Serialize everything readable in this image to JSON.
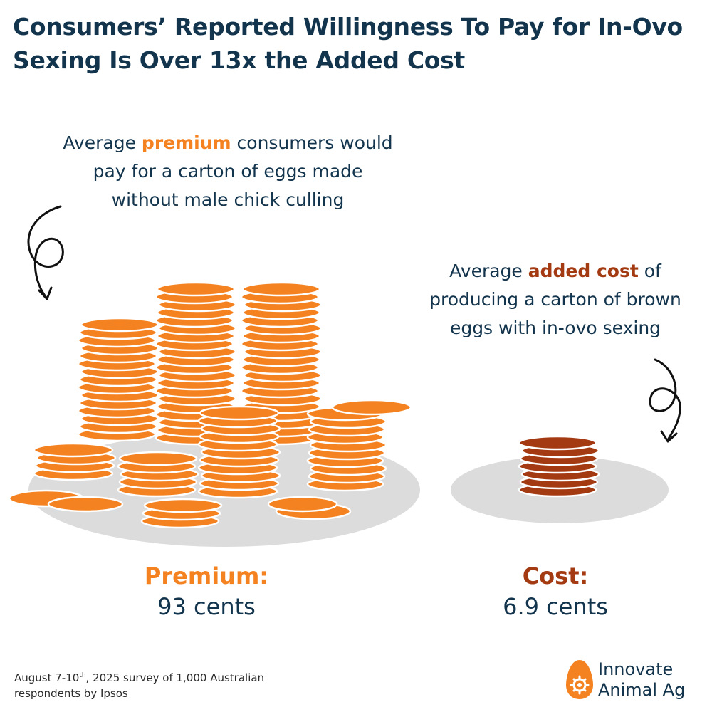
{
  "title": "Consumers’ Reported Willingness To Pay for In-Ovo Sexing Is Over 13x the Added Cost",
  "premium_caption": {
    "before": "Average ",
    "highlight": "premium",
    "after": " consumers would pay for a carton of eggs made without male chick culling"
  },
  "cost_caption": {
    "before": "Average ",
    "highlight": "added cost",
    "after": " of producing a carton of brown eggs with in-ovo sexing"
  },
  "premium": {
    "label": "Premium:",
    "amount": "93 cents"
  },
  "cost": {
    "label": "Cost:",
    "amount": "6.9 cents"
  },
  "footnote": {
    "before": "August 7-10",
    "superscript": "th",
    "after": ", 2025 survey of 1,000 Australian respondents by Ipsos"
  },
  "brand": {
    "line1": "Innovate",
    "line2": "Animal Ag"
  },
  "colors": {
    "title": "#12344d",
    "premium": "#f58220",
    "cost": "#a43a12",
    "plate": "#dcdcdc"
  },
  "chart_data": {
    "type": "bar",
    "categories": [
      "Premium",
      "Cost"
    ],
    "values": [
      93,
      6.9
    ],
    "ylabel": "cents"
  }
}
